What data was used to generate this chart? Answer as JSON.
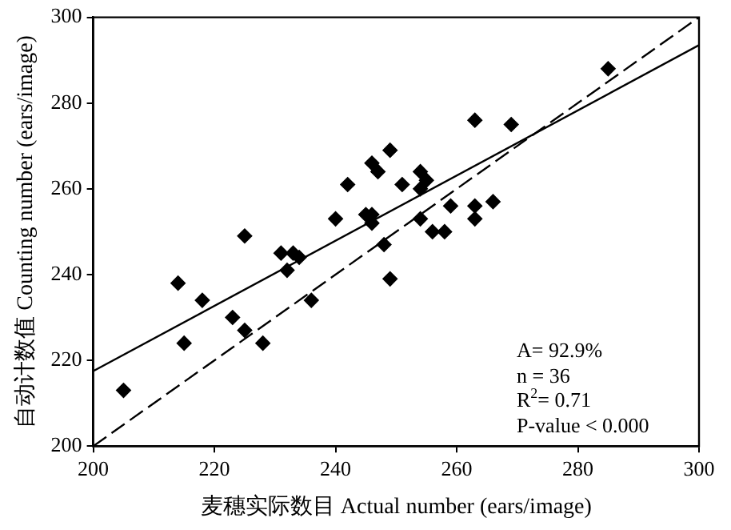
{
  "chart_data": {
    "type": "scatter",
    "xlabel": "麦穗实际数目 Actual number (ears/image)",
    "ylabel": "自动计数值 Counting number (ears/image)",
    "xlim": [
      200,
      300
    ],
    "xticks": [
      200,
      220,
      240,
      260,
      280,
      300
    ],
    "ylim": [
      200,
      300
    ],
    "yticks": [
      200,
      220,
      240,
      260,
      280,
      300
    ],
    "grid": false,
    "legend": false,
    "marker": "diamond",
    "series": [
      {
        "color": "#000000",
        "x": [
          205,
          214,
          215,
          218,
          223,
          225,
          225,
          228,
          231,
          232,
          233,
          234,
          236,
          240,
          242,
          245,
          246,
          246,
          246,
          247,
          248,
          249,
          249,
          251,
          254,
          254,
          255,
          254,
          256,
          258,
          259,
          263,
          263,
          263,
          266,
          269,
          285
        ],
        "values": [
          213,
          238,
          224,
          234,
          230,
          249,
          227,
          224,
          245,
          241,
          245,
          244,
          234,
          253,
          261,
          254,
          254,
          252,
          266,
          264,
          247,
          269,
          239,
          261,
          264,
          260,
          262,
          253,
          250,
          250,
          256,
          256,
          253,
          276,
          257,
          275,
          288
        ]
      },
      {
        "type": "line",
        "color": "#000000",
        "marker": "none",
        "line_style": "solid",
        "x": [
          200,
          300
        ],
        "values": [
          217.5,
          293.5
        ]
      },
      {
        "type": "line",
        "color": "#000000",
        "marker": "none",
        "line_style": "dashed",
        "x": [
          200,
          300
        ],
        "values": [
          200,
          300
        ]
      }
    ],
    "annotations": [
      "A= 92.9%",
      "n = 36",
      "R$^{2}$= 0.71",
      "P-value < 0.000"
    ]
  }
}
